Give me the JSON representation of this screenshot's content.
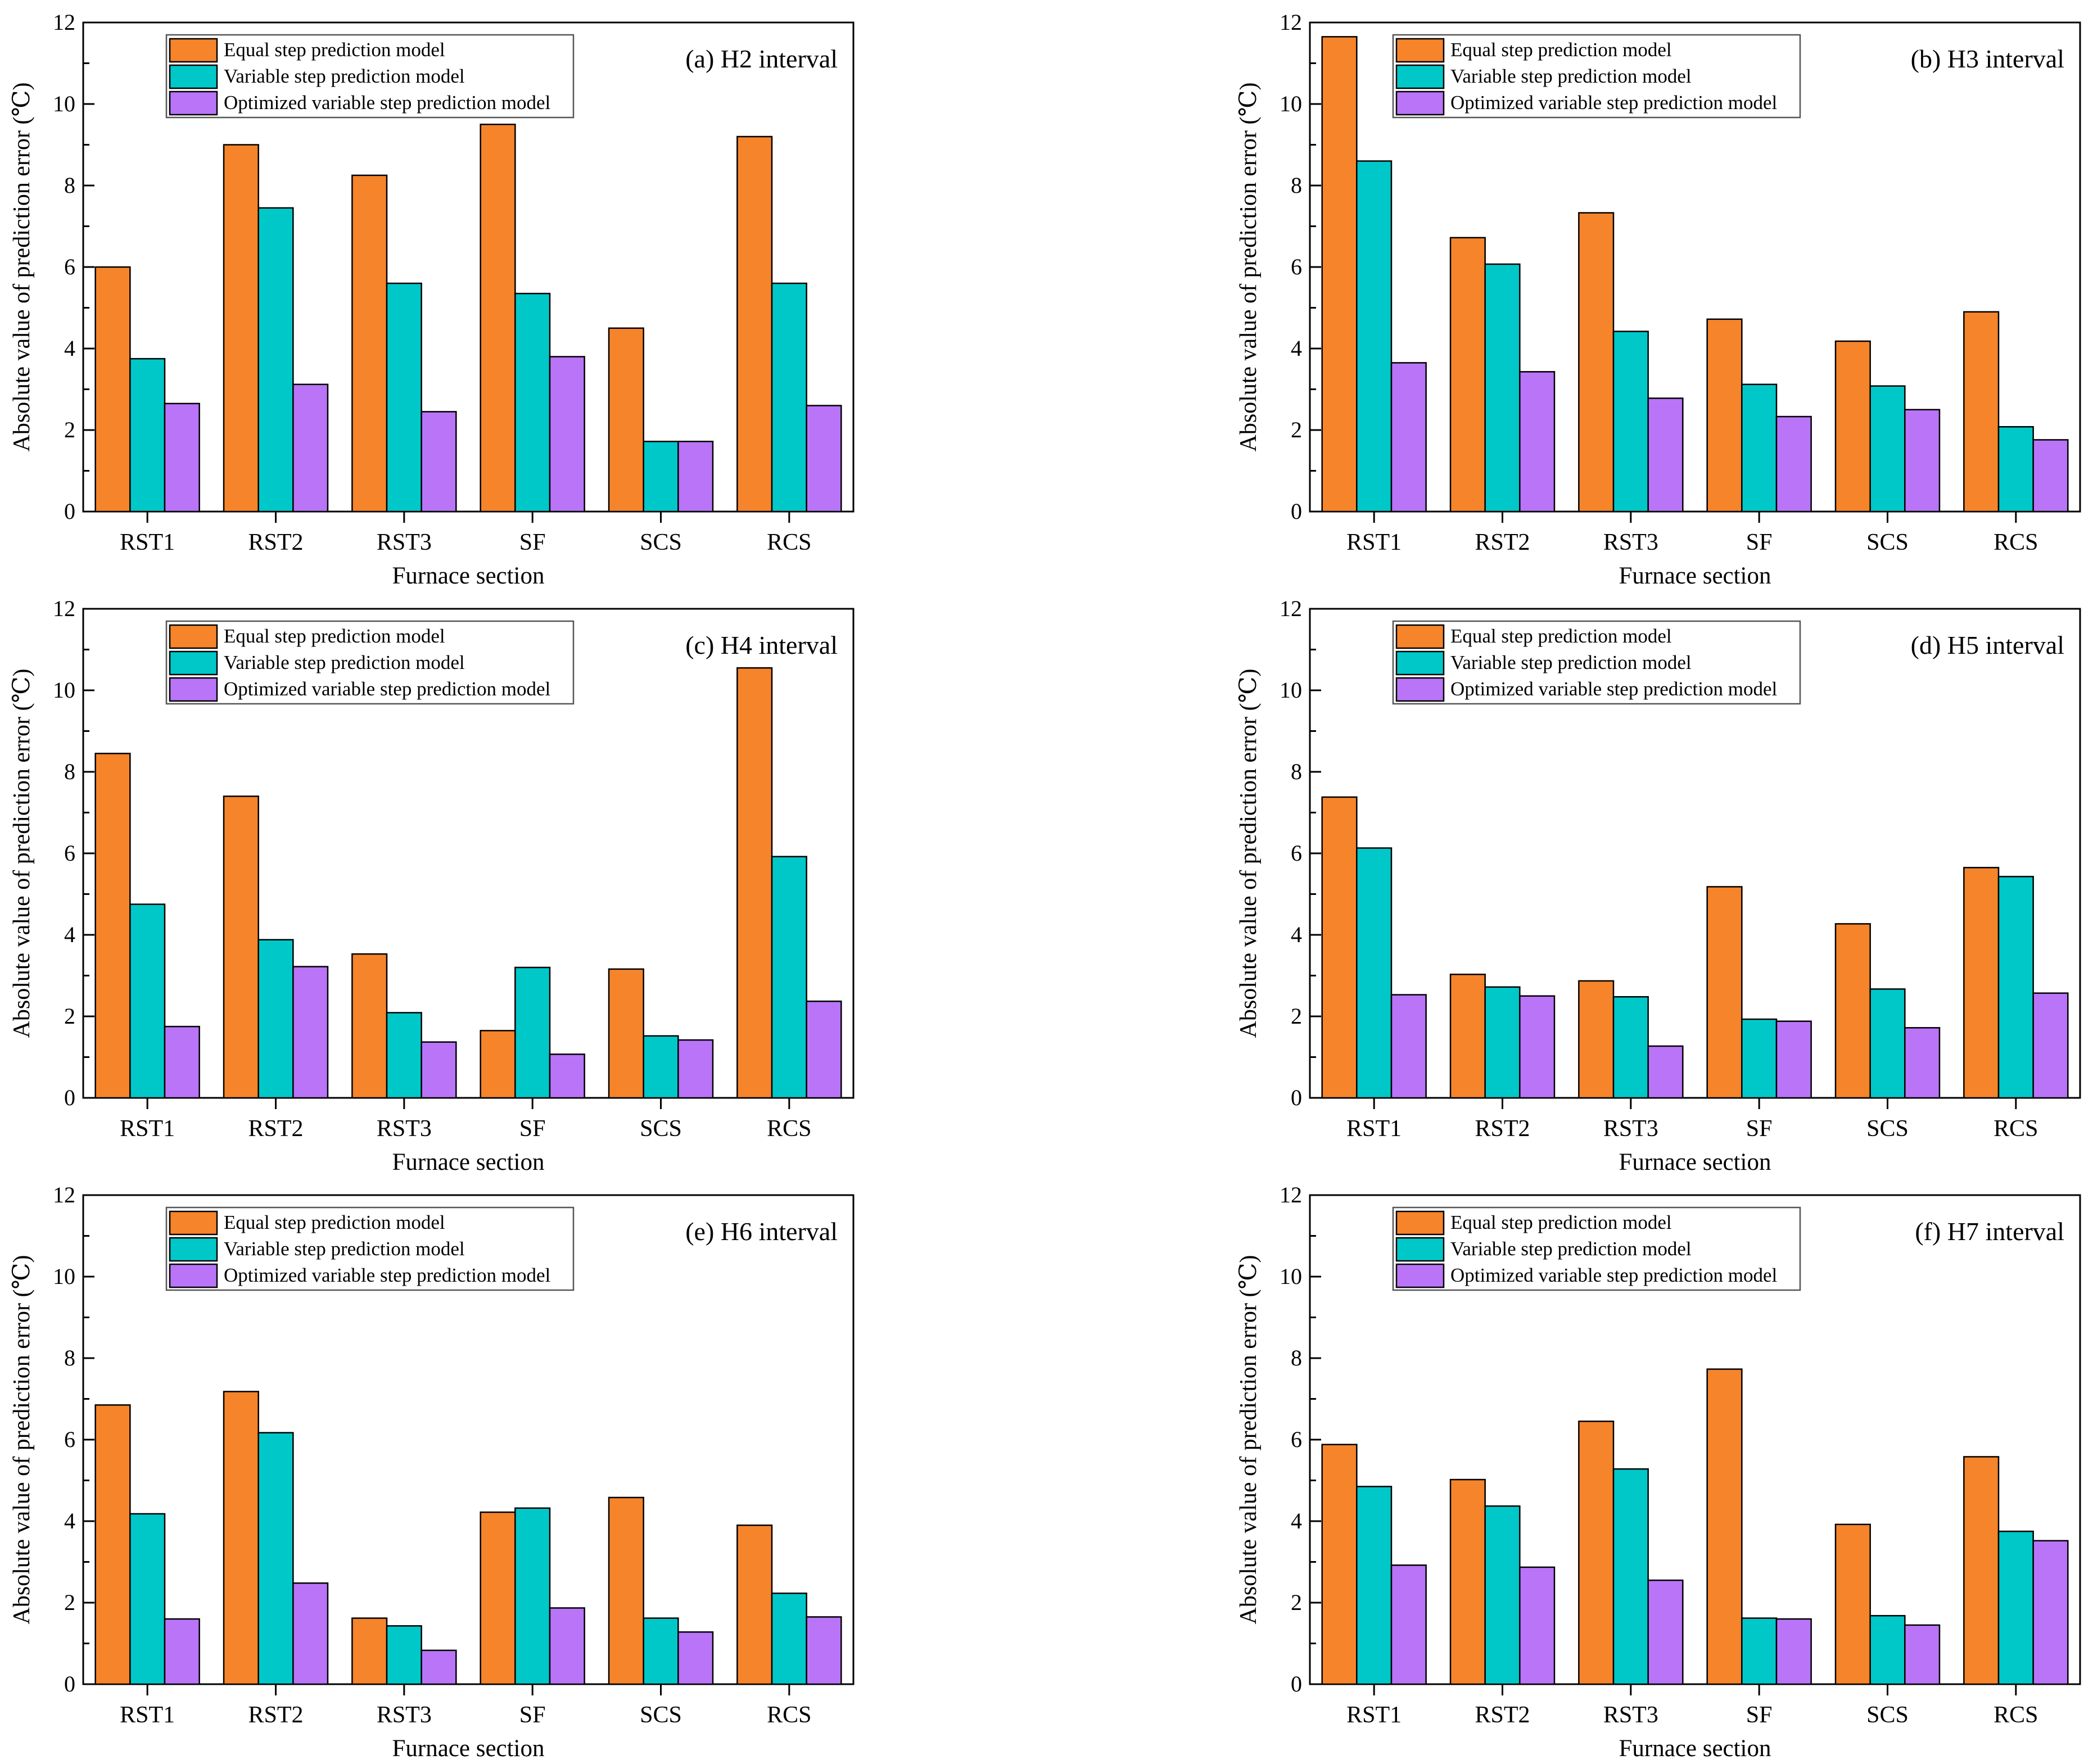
{
  "colors": {
    "equal": "#F5842B",
    "variable": "#00C8C8",
    "optimized": "#B974F7",
    "axis": "#000000"
  },
  "chart_data": [
    {
      "type": "bar",
      "title": "(a) H2 interval",
      "xlabel": "Furnace section",
      "ylabel": "Absolute value of prediction error (℃)",
      "ylim": [
        0,
        12
      ],
      "yticks": [
        "0",
        "2",
        "4",
        "6",
        "8",
        "10",
        "12"
      ],
      "categories": [
        "RST1",
        "RST2",
        "RST3",
        "SF",
        "SCS",
        "RCS"
      ],
      "legend_position": "top-left",
      "series": [
        {
          "name": "Equal step prediction model",
          "values": [
            6.0,
            9.0,
            8.25,
            9.5,
            4.5,
            9.2
          ]
        },
        {
          "name": "Variable step prediction model",
          "values": [
            3.75,
            7.45,
            5.6,
            5.35,
            1.72,
            5.6
          ]
        },
        {
          "name": "Optimized variable step prediction model",
          "values": [
            2.65,
            3.12,
            2.45,
            3.8,
            1.72,
            2.6
          ]
        }
      ]
    },
    {
      "type": "bar",
      "title": "(b) H3 interval",
      "xlabel": "Furnace section",
      "ylabel": "Absolute value of prediction error (℃)",
      "ylim": [
        0,
        12
      ],
      "yticks": [
        "0",
        "2",
        "4",
        "6",
        "8",
        "10",
        "12"
      ],
      "categories": [
        "RST1",
        "RST2",
        "RST3",
        "SF",
        "SCS",
        "RCS"
      ],
      "legend_position": "top-left",
      "series": [
        {
          "name": "Equal step prediction model",
          "values": [
            11.65,
            6.72,
            7.33,
            4.72,
            4.18,
            4.9
          ]
        },
        {
          "name": "Variable step prediction model",
          "values": [
            8.6,
            6.07,
            4.42,
            3.12,
            3.08,
            2.08
          ]
        },
        {
          "name": "Optimized variable step prediction model",
          "values": [
            3.65,
            3.43,
            2.78,
            2.33,
            2.5,
            1.76
          ]
        }
      ]
    },
    {
      "type": "bar",
      "title": "(c) H4 interval",
      "xlabel": "Furnace section",
      "ylabel": "Absolute value of prediction error (℃)",
      "ylim": [
        0,
        12
      ],
      "yticks": [
        "0",
        "2",
        "4",
        "6",
        "8",
        "10",
        "12"
      ],
      "categories": [
        "RST1",
        "RST2",
        "RST3",
        "SF",
        "SCS",
        "RCS"
      ],
      "legend_position": "top-left",
      "series": [
        {
          "name": "Equal step prediction model",
          "values": [
            8.45,
            7.4,
            3.53,
            1.65,
            3.16,
            10.55
          ]
        },
        {
          "name": "Variable step prediction model",
          "values": [
            4.75,
            3.88,
            2.09,
            3.2,
            1.52,
            5.92
          ]
        },
        {
          "name": "Optimized variable step prediction model",
          "values": [
            1.75,
            3.22,
            1.37,
            1.07,
            1.42,
            2.37
          ]
        }
      ]
    },
    {
      "type": "bar",
      "title": "(d) H5 interval",
      "xlabel": "Furnace section",
      "ylabel": "Absolute value of prediction error (℃)",
      "ylim": [
        0,
        12
      ],
      "yticks": [
        "0",
        "2",
        "4",
        "6",
        "8",
        "10",
        "12"
      ],
      "categories": [
        "RST1",
        "RST2",
        "RST3",
        "SF",
        "SCS",
        "RCS"
      ],
      "legend_position": "top-left",
      "series": [
        {
          "name": "Equal step prediction model",
          "values": [
            7.38,
            3.03,
            2.87,
            5.18,
            4.27,
            5.65
          ]
        },
        {
          "name": "Variable step prediction model",
          "values": [
            6.13,
            2.72,
            2.48,
            1.93,
            2.67,
            5.43
          ]
        },
        {
          "name": "Optimized variable step prediction model",
          "values": [
            2.53,
            2.5,
            1.27,
            1.88,
            1.72,
            2.57
          ]
        }
      ]
    },
    {
      "type": "bar",
      "title": "(e) H6 interval",
      "xlabel": "Furnace section",
      "ylabel": "Absolute value of prediction error (℃)",
      "ylim": [
        0,
        12
      ],
      "yticks": [
        "0",
        "2",
        "4",
        "6",
        "8",
        "10",
        "12"
      ],
      "categories": [
        "RST1",
        "RST2",
        "RST3",
        "SF",
        "SCS",
        "RCS"
      ],
      "legend_position": "top-left",
      "series": [
        {
          "name": "Equal step prediction model",
          "values": [
            6.85,
            7.18,
            1.62,
            4.22,
            4.58,
            3.9
          ]
        },
        {
          "name": "Variable step prediction model",
          "values": [
            4.18,
            6.17,
            1.43,
            4.32,
            1.62,
            2.23
          ]
        },
        {
          "name": "Optimized variable step prediction model",
          "values": [
            1.6,
            2.48,
            0.83,
            1.87,
            1.28,
            1.65
          ]
        }
      ]
    },
    {
      "type": "bar",
      "title": "(f) H7 interval",
      "xlabel": "Furnace section",
      "ylabel": "Absolute value of prediction error (℃)",
      "ylim": [
        0,
        12
      ],
      "yticks": [
        "0",
        "2",
        "4",
        "6",
        "8",
        "10",
        "12"
      ],
      "categories": [
        "RST1",
        "RST2",
        "RST3",
        "SF",
        "SCS",
        "RCS"
      ],
      "legend_position": "top-left",
      "series": [
        {
          "name": "Equal step prediction model",
          "values": [
            5.88,
            5.02,
            6.45,
            7.73,
            3.92,
            5.58
          ]
        },
        {
          "name": "Variable step prediction model",
          "values": [
            4.85,
            4.37,
            5.28,
            1.62,
            1.68,
            3.75
          ]
        },
        {
          "name": "Optimized variable step prediction model",
          "values": [
            2.92,
            2.87,
            2.55,
            1.6,
            1.45,
            3.52
          ]
        }
      ]
    }
  ]
}
